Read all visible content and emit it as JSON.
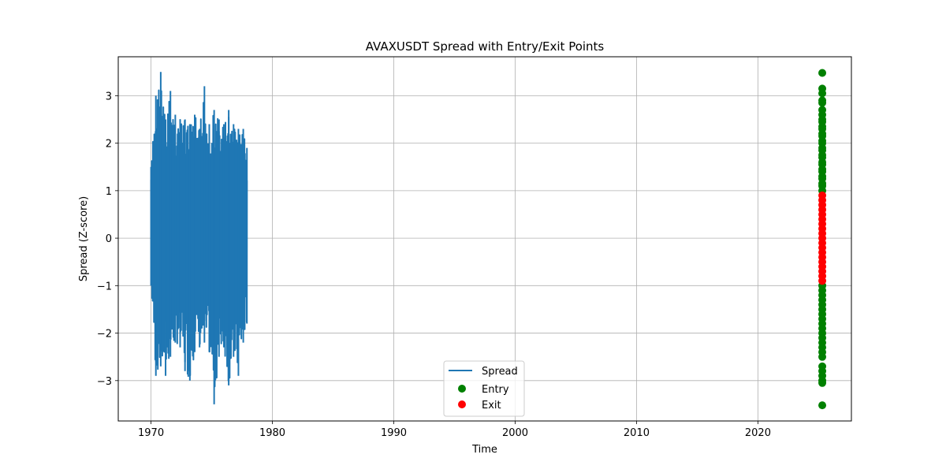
{
  "chart_data": {
    "type": "line",
    "title": "AVAXUSDT Spread with Entry/Exit Points",
    "xlabel": "Time",
    "ylabel": "Spread (Z-score)",
    "xlim": [
      1967.3,
      2027.7
    ],
    "ylim": [
      -3.85,
      3.82
    ],
    "xticks": [
      1970,
      1980,
      1990,
      2000,
      2010,
      2020
    ],
    "yticks": [
      -3,
      -2,
      -1,
      0,
      1,
      2,
      3
    ],
    "ytick_labels": [
      "−3",
      "−2",
      "−1",
      "0",
      "1",
      "2",
      "3"
    ],
    "grid": true,
    "legend_position": "lower center",
    "series": [
      {
        "name": "Spread",
        "kind": "line",
        "color": "#1f77b4",
        "x": [
          1970.0,
          1970.4,
          1970.8,
          1971.2,
          1971.6,
          1972.0,
          1972.4,
          1972.8,
          1973.2,
          1973.6,
          1974.0,
          1974.4,
          1974.8,
          1975.2,
          1975.6,
          1976.0,
          1976.4,
          1976.8,
          1977.2,
          1977.6,
          1977.9
        ],
        "y_min": [
          -1.0,
          -2.9,
          -2.7,
          -2.9,
          -2.5,
          -2.2,
          -2.3,
          -2.8,
          -3.0,
          -2.4,
          -2.3,
          -2.2,
          -2.4,
          -3.5,
          -2.5,
          -2.3,
          -3.1,
          -2.5,
          -2.9,
          -2.2,
          -1.8
        ],
        "y_max": [
          1.5,
          3.0,
          3.5,
          2.5,
          3.1,
          2.6,
          2.5,
          2.5,
          2.4,
          2.6,
          2.3,
          3.2,
          2.4,
          2.7,
          2.5,
          2.4,
          2.7,
          2.4,
          2.3,
          2.3,
          1.9
        ]
      },
      {
        "name": "Entry",
        "kind": "scatter",
        "color": "#008000",
        "x": 2025.3,
        "y": [
          3.48,
          3.15,
          3.05,
          2.9,
          2.85,
          2.7,
          2.6,
          2.5,
          2.45,
          2.35,
          2.3,
          2.2,
          2.15,
          2.05,
          2.0,
          1.9,
          1.85,
          1.75,
          1.7,
          1.6,
          1.55,
          1.45,
          1.4,
          1.3,
          1.25,
          1.15,
          1.1,
          1.0,
          -1.0,
          -1.1,
          -1.2,
          -1.3,
          -1.4,
          -1.5,
          -1.6,
          -1.7,
          -1.8,
          -1.9,
          -2.0,
          -2.1,
          -2.2,
          -2.3,
          -2.4,
          -2.5,
          -2.7,
          -2.8,
          -2.9,
          -3.0,
          -3.05,
          -3.52
        ]
      },
      {
        "name": "Exit",
        "kind": "scatter",
        "color": "#ff0000",
        "x": 2025.3,
        "y": [
          0.9,
          0.8,
          0.7,
          0.6,
          0.5,
          0.4,
          0.3,
          0.2,
          0.1,
          0.0,
          -0.1,
          -0.2,
          -0.3,
          -0.4,
          -0.5,
          -0.6,
          -0.7,
          -0.8,
          -0.9
        ]
      }
    ]
  }
}
